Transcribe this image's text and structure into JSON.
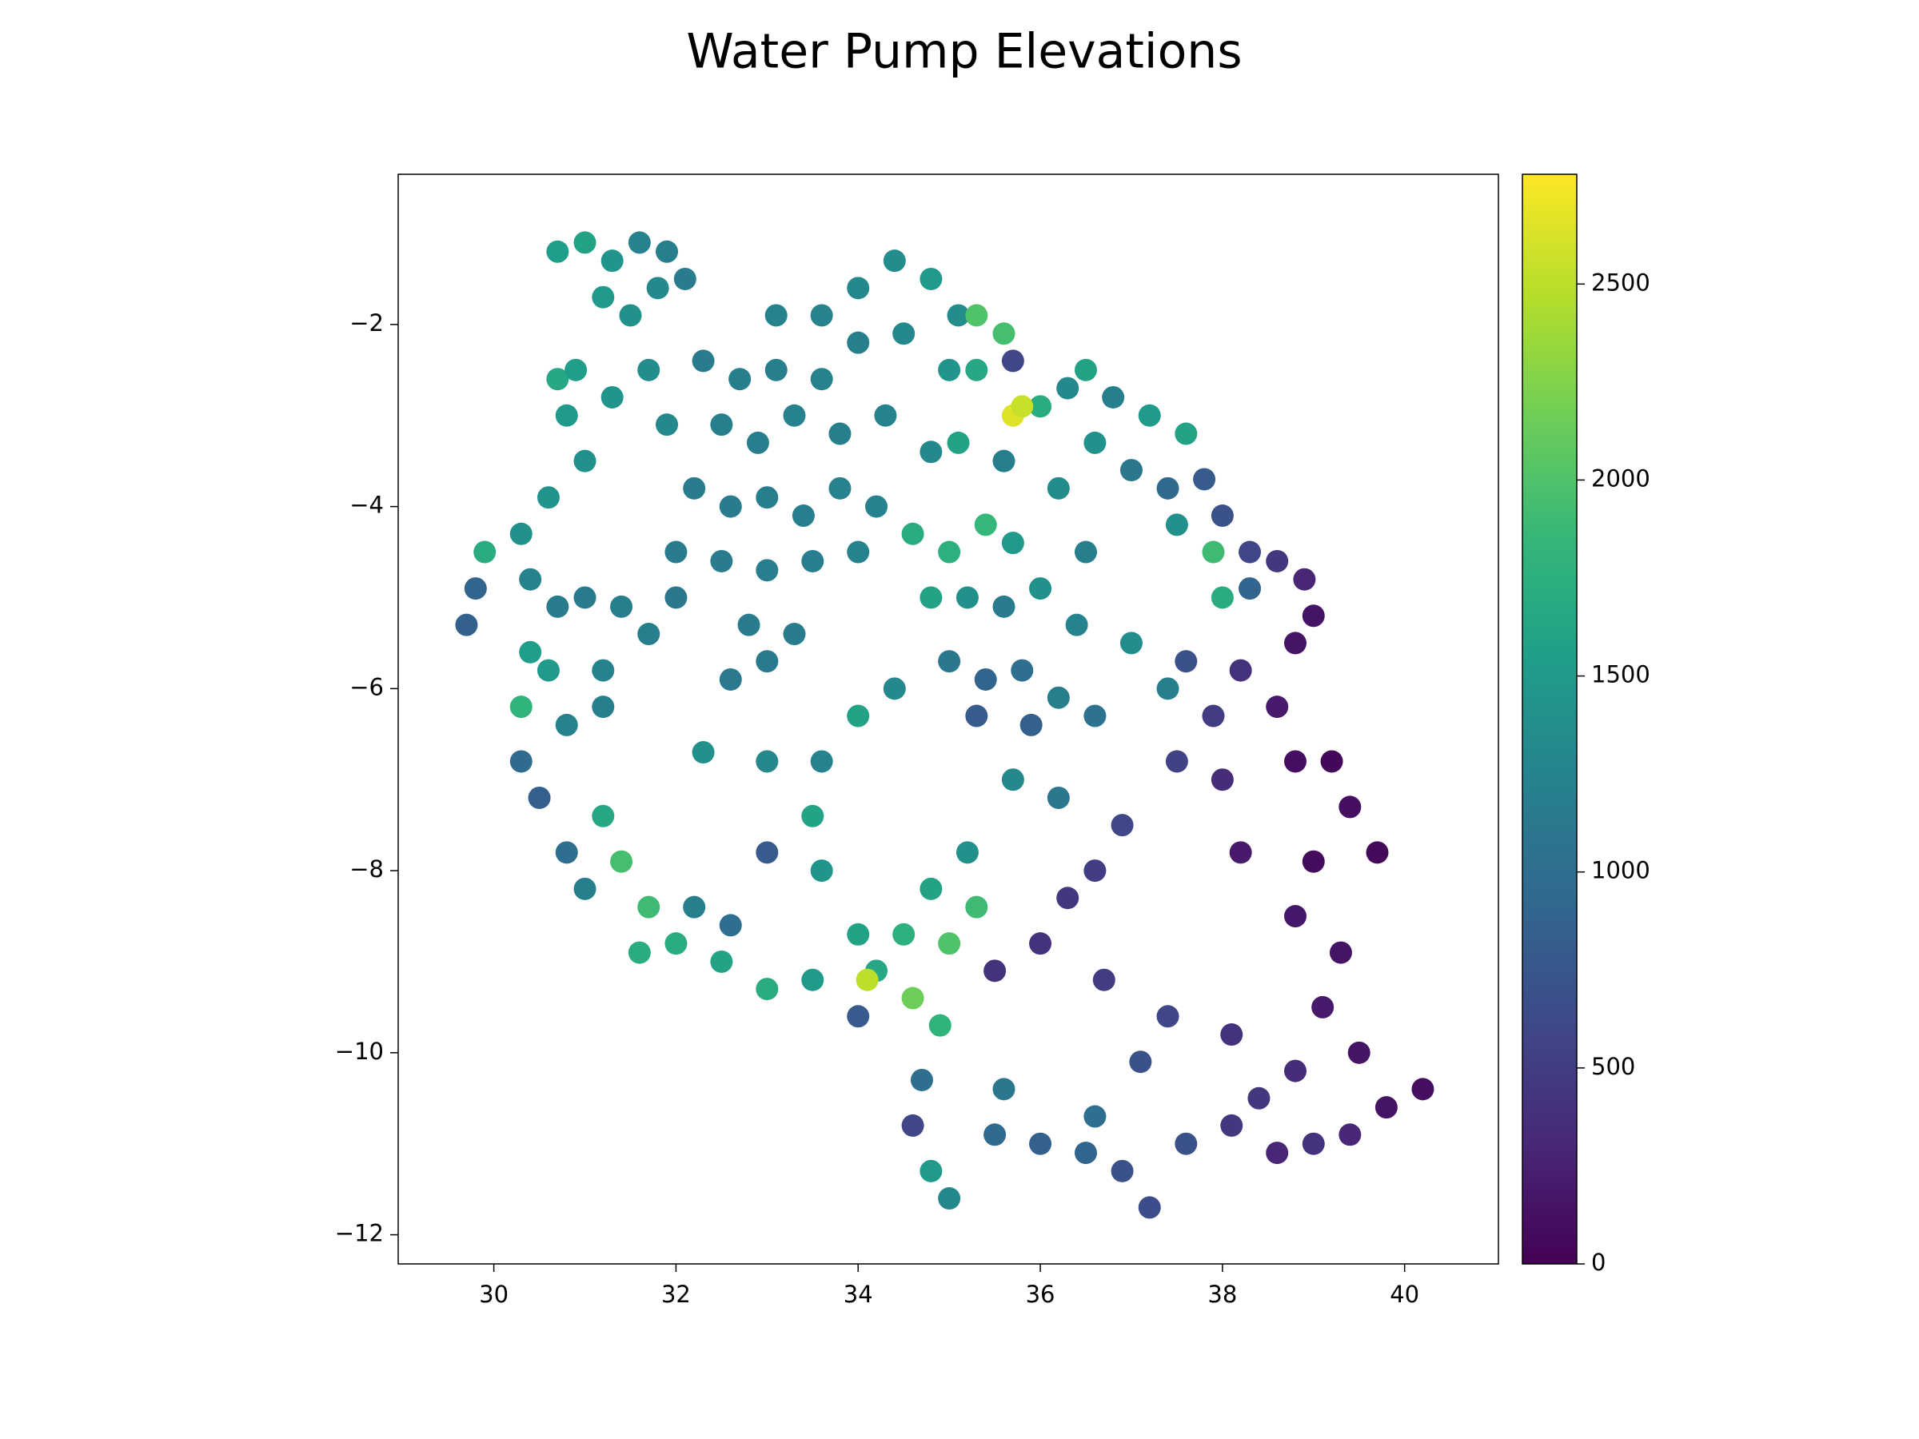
{
  "chart_data": {
    "type": "scatter",
    "title": "Water Pump Elevations",
    "x": [
      30.7,
      31.0,
      31.3,
      31.6,
      31.9,
      31.2,
      31.5,
      31.8,
      32.1,
      30.7,
      30.9,
      31.3,
      31.7,
      31.9,
      30.8,
      31.0,
      30.6,
      30.3,
      29.9,
      29.8,
      29.7,
      30.4,
      30.7,
      31.0,
      31.4,
      30.4,
      30.6,
      30.3,
      30.8,
      31.2,
      31.2,
      31.7,
      32.0,
      32.3,
      32.7,
      33.1,
      33.6,
      34.0,
      32.5,
      32.9,
      33.3,
      33.8,
      34.3,
      34.8,
      32.2,
      32.6,
      33.0,
      33.4,
      33.8,
      34.2,
      32.0,
      32.5,
      33.0,
      33.5,
      34.0,
      32.8,
      33.3,
      32.6,
      33.0,
      33.1,
      33.6,
      34.0,
      34.4,
      34.8,
      35.1,
      34.5,
      35.0,
      35.3,
      35.6,
      35.3,
      35.7,
      36.0,
      35.7,
      35.8,
      36.3,
      36.5,
      36.8,
      37.2,
      37.6,
      36.6,
      37.0,
      37.4,
      37.8,
      38.0,
      38.3,
      38.6,
      38.9,
      39.0,
      36.2,
      35.6,
      35.1,
      37.5,
      36.5,
      37.9,
      34.6,
      35.0,
      35.4,
      35.7,
      34.8,
      35.2,
      35.6,
      36.0,
      36.4,
      35.0,
      35.4,
      35.8,
      36.2,
      36.6,
      35.9,
      35.3,
      34.4,
      34.0,
      33.6,
      33.0,
      32.3,
      33.5,
      37.0,
      37.4,
      37.6,
      37.9,
      38.2,
      37.5,
      38.0,
      38.6,
      38.8,
      39.2,
      39.4,
      39.0,
      39.7,
      38.2,
      38.8,
      36.9,
      36.6,
      36.3,
      36.0,
      35.5,
      36.7,
      36.2,
      35.7,
      35.2,
      34.8,
      35.3,
      34.5,
      35.0,
      34.2,
      34.6,
      34.1,
      34.9,
      33.5,
      33.0,
      32.5,
      32.0,
      31.7,
      31.4,
      31.2,
      31.6,
      32.2,
      31.0,
      30.8,
      30.5,
      30.3,
      32.6,
      33.6,
      34.0,
      33.0,
      34.0,
      34.7,
      34.6,
      34.8,
      35.0,
      35.5,
      36.0,
      36.5,
      36.9,
      37.2,
      37.6,
      38.1,
      38.6,
      39.0,
      39.4,
      39.8,
      40.2,
      39.5,
      39.1,
      38.8,
      38.4,
      38.1,
      37.4,
      37.1,
      39.3,
      38.8,
      35.6,
      36.6,
      38.0,
      38.3
    ],
    "values": [
      -1.2,
      -1.1,
      -1.3,
      -1.1,
      -1.2,
      -1.7,
      -1.9,
      -1.6,
      -1.5,
      -2.6,
      -2.5,
      -2.8,
      -2.5,
      -3.1,
      -3.0,
      -3.5,
      -3.9,
      -4.3,
      -4.5,
      -4.9,
      -5.3,
      -4.8,
      -5.1,
      -5.0,
      -5.1,
      -5.6,
      -5.8,
      -6.2,
      -6.4,
      -6.2,
      -5.8,
      -5.4,
      -5.0,
      -2.4,
      -2.6,
      -2.5,
      -2.6,
      -2.2,
      -3.1,
      -3.3,
      -3.0,
      -3.2,
      -3.0,
      -3.4,
      -3.8,
      -4.0,
      -3.9,
      -4.1,
      -3.8,
      -4.0,
      -4.5,
      -4.6,
      -4.7,
      -4.6,
      -4.5,
      -5.3,
      -5.4,
      -5.9,
      -5.7,
      -1.9,
      -1.9,
      -1.6,
      -1.3,
      -1.5,
      -1.9,
      -2.1,
      -2.5,
      -1.9,
      -2.1,
      -2.5,
      -2.4,
      -2.9,
      -3.0,
      -2.9,
      -2.7,
      -2.5,
      -2.8,
      -3.0,
      -3.2,
      -3.3,
      -3.6,
      -3.8,
      -3.7,
      -4.1,
      -4.5,
      -4.6,
      -4.8,
      -5.2,
      -3.8,
      -3.5,
      -3.3,
      -4.2,
      -4.5,
      -4.5,
      -4.3,
      -4.5,
      -4.2,
      -4.4,
      -5.0,
      -5.0,
      -5.1,
      -4.9,
      -5.3,
      -5.7,
      -5.9,
      -5.8,
      -6.1,
      -6.3,
      -6.4,
      -6.3,
      -6.0,
      -6.3,
      -6.8,
      -6.8,
      -6.7,
      -7.4,
      -5.5,
      -6.0,
      -5.7,
      -6.3,
      -5.8,
      -6.8,
      -7.0,
      -6.2,
      -6.8,
      -6.8,
      -7.3,
      -7.9,
      -7.8,
      -7.8,
      -5.5,
      -7.5,
      -8.0,
      -8.3,
      -8.8,
      -9.1,
      -9.2,
      -7.2,
      -7.0,
      -7.8,
      -8.2,
      -8.4,
      -8.7,
      -8.8,
      -9.1,
      -9.4,
      -9.2,
      -9.7,
      -9.2,
      -9.3,
      -9.0,
      -8.8,
      -8.4,
      -7.9,
      -7.4,
      -8.9,
      -8.4,
      -8.2,
      -7.8,
      -7.2,
      -6.8,
      -8.6,
      -8.0,
      -8.7,
      -7.8,
      -9.6,
      -10.3,
      -10.8,
      -11.3,
      -11.6,
      -10.9,
      -11.0,
      -11.1,
      -11.3,
      -11.7,
      -11.0,
      -10.8,
      -11.1,
      -11.0,
      -10.9,
      -10.6,
      -10.4,
      -10.0,
      -9.5,
      -10.2,
      -10.5,
      -9.8,
      -9.6,
      -10.1,
      -8.9,
      -8.5,
      -10.4,
      -10.7,
      -5.0,
      -4.9
    ],
    "c": [
      1550,
      1600,
      1450,
      1250,
      1200,
      1500,
      1400,
      1300,
      1150,
      1650,
      1550,
      1450,
      1350,
      1300,
      1500,
      1400,
      1450,
      1400,
      1700,
      900,
      850,
      1250,
      1150,
      1150,
      1200,
      1550,
      1500,
      1800,
      1250,
      1200,
      1250,
      1200,
      1100,
      1150,
      1200,
      1200,
      1250,
      1200,
      1200,
      1180,
      1220,
      1200,
      1250,
      1300,
      1150,
      1170,
      1200,
      1180,
      1220,
      1230,
      1150,
      1150,
      1180,
      1190,
      1250,
      1150,
      1160,
      1130,
      1140,
      1250,
      1250,
      1300,
      1350,
      1500,
      1350,
      1300,
      1450,
      2000,
      1950,
      1650,
      600,
      1700,
      2650,
      2550,
      1300,
      1600,
      1200,
      1500,
      1600,
      1400,
      1100,
      950,
      800,
      700,
      600,
      450,
      300,
      150,
      1350,
      1200,
      1600,
      1400,
      1200,
      1900,
      1700,
      1750,
      1850,
      1500,
      1600,
      1400,
      1150,
      1400,
      1250,
      1100,
      900,
      1000,
      1200,
      1050,
      850,
      800,
      1300,
      1600,
      1250,
      1300,
      1400,
      1600,
      1350,
      1200,
      700,
      500,
      400,
      550,
      350,
      200,
      100,
      50,
      100,
      80,
      60,
      200,
      150,
      600,
      500,
      450,
      400,
      400,
      500,
      1100,
      1300,
      1400,
      1600,
      1900,
      1750,
      2000,
      1650,
      2150,
      2500,
      1800,
      1500,
      1700,
      1600,
      1700,
      1900,
      1950,
      1650,
      1700,
      1200,
      1200,
      1000,
      850,
      950,
      1000,
      1450,
      1600,
      800,
      800,
      1000,
      600,
      1500,
      1300,
      950,
      850,
      900,
      700,
      650,
      700,
      450,
      300,
      400,
      300,
      150,
      100,
      150,
      200,
      350,
      450,
      400,
      600,
      700,
      150,
      180,
      1100,
      1000,
      1700,
      900
    ],
    "xlim": [
      28.95,
      41.03
    ],
    "ylim": [
      -12.32,
      -0.35
    ],
    "xticks": [
      30,
      32,
      34,
      36,
      38,
      40
    ],
    "yticks": [
      {
        "value": -12,
        "label": "−12"
      },
      {
        "value": -10,
        "label": "−10"
      },
      {
        "value": -8,
        "label": "−8"
      },
      {
        "value": -6,
        "label": "−6"
      },
      {
        "value": -4,
        "label": "−4"
      },
      {
        "value": -2,
        "label": "−2"
      }
    ],
    "colormap": "viridis",
    "clim": [
      0,
      2780
    ],
    "cticks": [
      0,
      500,
      1000,
      1500,
      2000,
      2500
    ],
    "grid": false
  }
}
